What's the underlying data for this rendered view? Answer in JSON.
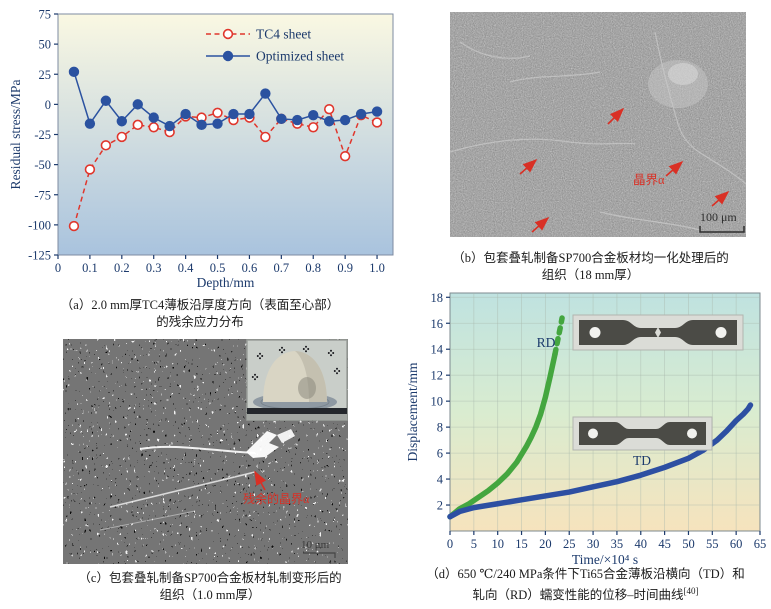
{
  "figure": {
    "panel_a": {
      "caption_line1": "（a）2.0 mm厚TC4薄板沿厚度方向（表面至心部）",
      "caption_line2": "的残余应力分布"
    },
    "panel_b": {
      "caption_line1": "（b）包套叠轧制备SP700合金板材均一化处理后的",
      "caption_line2": "组织（18 mm厚）",
      "annotation": "晶界α",
      "scale_bar": "100 μm"
    },
    "panel_c": {
      "caption_line1": "（c）包套叠轧制备SP700合金板材轧制变形后的",
      "caption_line2": "组织（1.0 mm厚）",
      "annotation": "残余的晶界α",
      "scale_bar": "10 μm"
    },
    "panel_d": {
      "caption_line1": "（d）650 ℃/240 MPa条件下Ti65合金薄板沿横向（TD）和",
      "caption_line2": "轧向（RD）蠕变性能的位移–时间曲线",
      "caption_ref": "[40]",
      "label_rd": "RD",
      "label_td": "TD"
    }
  },
  "chart_data": [
    {
      "id": "residual-stress",
      "type": "line",
      "xlabel": "Depth/mm",
      "ylabel": "Residual stress/MPa",
      "xlim": [
        0,
        1.05
      ],
      "ylim": [
        -125,
        75
      ],
      "xtick_vals": [
        0,
        0.1,
        0.2,
        0.3,
        0.4,
        0.5,
        0.6,
        0.7,
        0.8,
        0.9,
        1.0
      ],
      "xtick_labels": [
        "0",
        "0.1",
        "0.2",
        "0.3",
        "0.4",
        "0.5",
        "0.6",
        "0.7",
        "0.8",
        "0.9",
        "1.0"
      ],
      "ytick_vals": [
        75,
        50,
        25,
        0,
        -25,
        -50,
        -75,
        -100,
        -125
      ],
      "ytick_labels": [
        "75",
        "50",
        "25",
        "0",
        "-25",
        "-50",
        "-75",
        "-100",
        "-125"
      ],
      "grid": false,
      "legend_position": "top-right",
      "bg_gradient": [
        "#faf8e2",
        "#a9c3de"
      ],
      "x": [
        0.05,
        0.1,
        0.15,
        0.2,
        0.25,
        0.3,
        0.35,
        0.4,
        0.45,
        0.5,
        0.55,
        0.6,
        0.65,
        0.7,
        0.75,
        0.8,
        0.85,
        0.9,
        0.95,
        1.0
      ],
      "series": [
        {
          "name": "TC4 sheet",
          "color": "#e0362c",
          "style": "dashed",
          "marker": "open",
          "values": [
            -101,
            -54,
            -34,
            -27,
            -17,
            -19,
            -23,
            -10,
            -11,
            -7,
            -13,
            -11,
            -27,
            -12,
            -16,
            -19,
            -4,
            -43,
            -9,
            -15
          ]
        },
        {
          "name": "Optimized sheet",
          "color": "#2b52a0",
          "style": "solid",
          "marker": "filled",
          "values": [
            27,
            -16,
            3,
            -14,
            0,
            -11,
            -18,
            -8,
            -17,
            -16,
            -8,
            -8,
            9,
            -12,
            -13,
            -9,
            -14,
            -13,
            -8,
            -6
          ]
        }
      ]
    },
    {
      "id": "creep-displacement",
      "type": "line",
      "xlabel": "Time/×10⁴ s",
      "ylabel": "Displacement/mm",
      "xlim": [
        0,
        65
      ],
      "ylim": [
        0,
        18.33
      ],
      "xtick_vals": [
        0,
        5,
        10,
        15,
        20,
        25,
        30,
        35,
        40,
        45,
        50,
        55,
        60,
        65
      ],
      "ytick_vals": [
        2,
        4,
        6,
        8,
        10,
        12,
        14,
        16,
        18
      ],
      "grid": true,
      "bg_gradient": [
        "#bfe2e0",
        "#d9ecd0",
        "#f6e3bd"
      ],
      "series": [
        {
          "name": "RD",
          "color": "#44a63f",
          "width": 5.5,
          "dash_tip": true,
          "x": [
            0,
            1,
            2,
            4,
            6,
            8,
            10,
            12,
            14,
            16,
            17,
            18,
            19,
            20,
            21,
            22,
            22.7,
            23.2,
            23.5
          ],
          "y": [
            1.1,
            1.4,
            1.7,
            2.1,
            2.6,
            3.1,
            3.7,
            4.4,
            5.3,
            6.5,
            7.2,
            8.0,
            9.0,
            10.3,
            11.9,
            13.6,
            14.9,
            15.8,
            16.4
          ]
        },
        {
          "name": "TD",
          "color": "#2d4fa2",
          "width": 5.5,
          "dash_tip": false,
          "x": [
            0,
            2,
            5,
            10,
            15,
            20,
            25,
            30,
            35,
            40,
            45,
            50,
            53,
            56,
            58,
            60,
            61.5,
            62.5,
            63
          ],
          "y": [
            1.1,
            1.5,
            1.8,
            2.1,
            2.4,
            2.7,
            3.0,
            3.4,
            3.8,
            4.3,
            4.9,
            5.6,
            6.2,
            7.0,
            7.7,
            8.5,
            9.0,
            9.4,
            9.7
          ]
        }
      ]
    }
  ]
}
